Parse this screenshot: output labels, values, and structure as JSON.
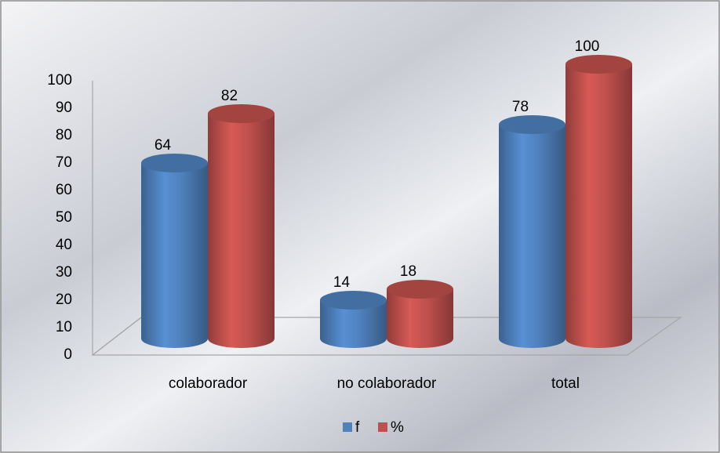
{
  "chart_data": {
    "type": "bar3d",
    "categories": [
      "colaborador",
      "no colaborador",
      "total"
    ],
    "series": [
      {
        "name": "f",
        "color": "#4f81bd",
        "values": [
          64,
          14,
          78
        ]
      },
      {
        "name": "%",
        "color": "#c0504d",
        "values": [
          82,
          18,
          100
        ]
      }
    ],
    "ylim": [
      0,
      100
    ],
    "yticks": [
      0,
      10,
      20,
      30,
      40,
      50,
      60,
      70,
      80,
      90,
      100
    ],
    "grid": false,
    "legend": "bottom"
  }
}
